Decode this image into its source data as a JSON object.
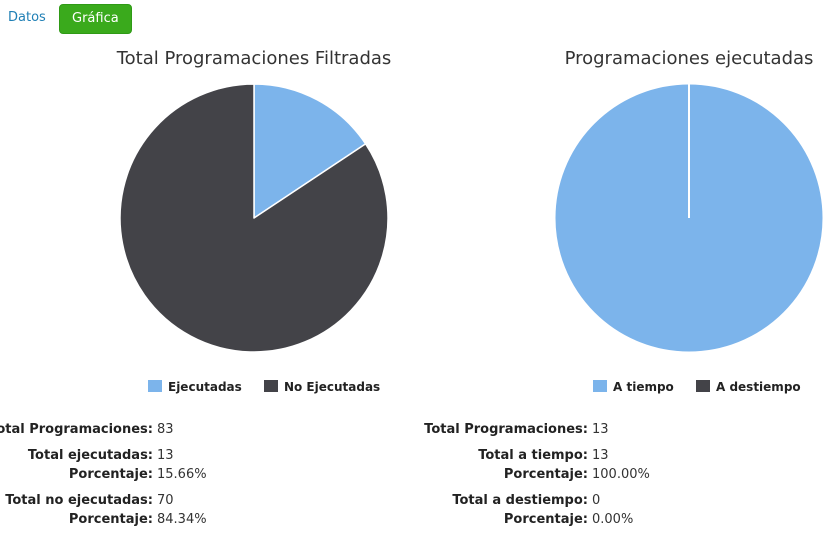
{
  "tabs": {
    "datos": "Datos",
    "grafica": "Gráfica"
  },
  "colors": {
    "ejecutadas": "#7cb4eb",
    "no_ejecutadas": "#434348"
  },
  "chart_data": [
    {
      "type": "pie",
      "title": "Total Programaciones Filtradas",
      "slices": [
        {
          "name": "Ejecutadas",
          "value": 13,
          "color": "#7cb4eb"
        },
        {
          "name": "No Ejecutadas",
          "value": 70,
          "color": "#434348"
        }
      ],
      "legend": "bottom"
    },
    {
      "type": "pie",
      "title": "Programaciones ejecutadas",
      "slices": [
        {
          "name": "A tiempo",
          "value": 13,
          "color": "#7cb4eb"
        },
        {
          "name": "A destiempo",
          "value": 0,
          "color": "#434348"
        }
      ],
      "legend": "bottom"
    }
  ],
  "stats_left": {
    "total_label": "Total Programaciones:",
    "total_value": "83",
    "ejec_label": "Total ejecutadas:",
    "ejec_value": "13",
    "ejec_pct_label": "Porcentaje:",
    "ejec_pct_value": "15.66%",
    "noejec_label": "Total no ejecutadas:",
    "noejec_value": "70",
    "noejec_pct_label": "Porcentaje:",
    "noejec_pct_value": "84.34%"
  },
  "stats_right": {
    "total_label": "Total Programaciones:",
    "total_value": "13",
    "atiempo_label": "Total a tiempo:",
    "atiempo_value": "13",
    "atiempo_pct_label": "Porcentaje:",
    "atiempo_pct_value": "100.00%",
    "destiempo_label": "Total a destiempo:",
    "destiempo_value": "0",
    "destiempo_pct_label": "Porcentaje:",
    "destiempo_pct_value": "0.00%"
  }
}
